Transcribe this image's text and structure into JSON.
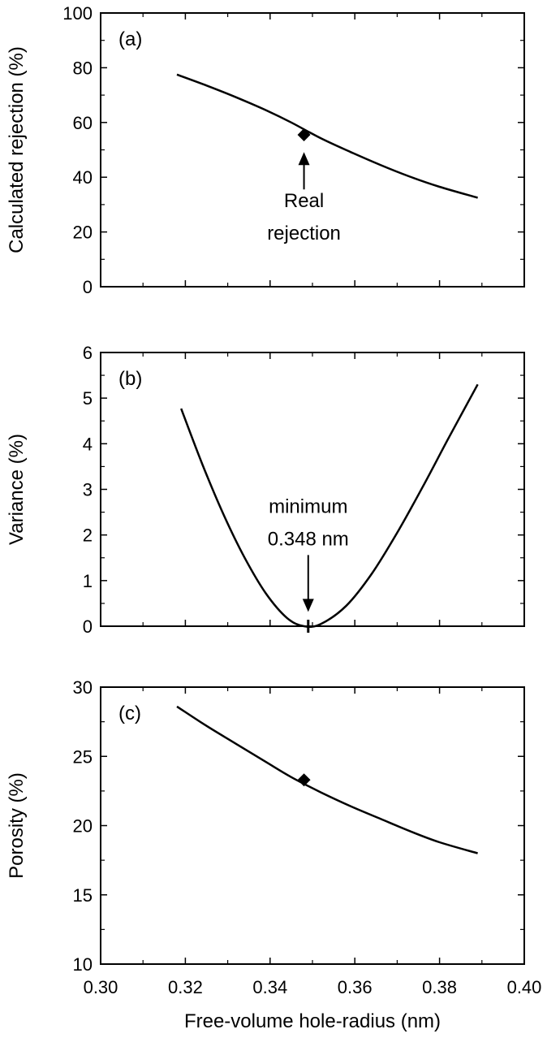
{
  "chart_data": [
    {
      "type": "line",
      "panel_label": "(a)",
      "xlabel": "",
      "ylabel": "Calculated rejection (%)",
      "xlim": [
        0.3,
        0.4
      ],
      "ylim": [
        0,
        100
      ],
      "xticks": [
        0.3,
        0.32,
        0.34,
        0.36,
        0.38,
        0.4
      ],
      "yticks": [
        0,
        20,
        40,
        60,
        80,
        100
      ],
      "ytick_labels": [
        "0",
        "20",
        "40",
        "60",
        "80",
        "100"
      ],
      "series": [
        {
          "x": [
            0.318,
            0.325,
            0.332,
            0.339,
            0.345,
            0.352,
            0.359,
            0.366,
            0.373,
            0.38,
            0.389
          ],
          "values": [
            77.5,
            73.5,
            69.2,
            64.5,
            60.0,
            54.2,
            49.2,
            44.5,
            40.2,
            36.5,
            32.5
          ]
        }
      ],
      "marker": {
        "x": 0.348,
        "y": 55.5,
        "shape": "diamond"
      },
      "annotation": {
        "lines": [
          "Real",
          "rejection"
        ],
        "arrow_to": [
          0.348,
          48
        ]
      }
    },
    {
      "type": "line",
      "panel_label": "(b)",
      "xlabel": "",
      "ylabel": "Variance (%)",
      "xlim": [
        0.3,
        0.4
      ],
      "ylim": [
        0,
        6
      ],
      "xticks": [
        0.3,
        0.32,
        0.34,
        0.36,
        0.38,
        0.4
      ],
      "yticks": [
        0,
        1,
        2,
        3,
        4,
        5,
        6
      ],
      "ytick_labels": [
        "0",
        "1",
        "2",
        "3",
        "4",
        "5",
        "6"
      ],
      "series": [
        {
          "x": [
            0.319,
            0.324,
            0.329,
            0.334,
            0.339,
            0.344,
            0.348,
            0.352,
            0.358,
            0.364,
            0.37,
            0.376,
            0.382,
            0.389
          ],
          "values": [
            4.77,
            3.55,
            2.45,
            1.5,
            0.72,
            0.18,
            0.0,
            0.05,
            0.45,
            1.15,
            2.05,
            3.05,
            4.1,
            5.3
          ]
        }
      ],
      "annotation": {
        "lines": [
          "minimum",
          "0.348 nm"
        ],
        "arrow_to": [
          0.349,
          0.35
        ]
      }
    },
    {
      "type": "line",
      "panel_label": "(c)",
      "xlabel": "Free-volume hole-radius (nm)",
      "ylabel": "Porosity (%)",
      "xlim": [
        0.3,
        0.4
      ],
      "ylim": [
        10,
        30
      ],
      "xticks": [
        0.3,
        0.32,
        0.34,
        0.36,
        0.38,
        0.4
      ],
      "xtick_labels": [
        "0.30",
        "0.32",
        "0.34",
        "0.36",
        "0.38",
        "0.40"
      ],
      "yticks": [
        10,
        15,
        20,
        25,
        30
      ],
      "ytick_labels": [
        "10",
        "15",
        "20",
        "25",
        "30"
      ],
      "series": [
        {
          "x": [
            0.318,
            0.325,
            0.332,
            0.339,
            0.345,
            0.352,
            0.359,
            0.366,
            0.373,
            0.38,
            0.389
          ],
          "values": [
            28.6,
            27.2,
            25.9,
            24.6,
            23.5,
            22.4,
            21.4,
            20.5,
            19.6,
            18.8,
            18.0
          ]
        }
      ],
      "marker": {
        "x": 0.348,
        "y": 23.3,
        "shape": "diamond"
      }
    }
  ]
}
